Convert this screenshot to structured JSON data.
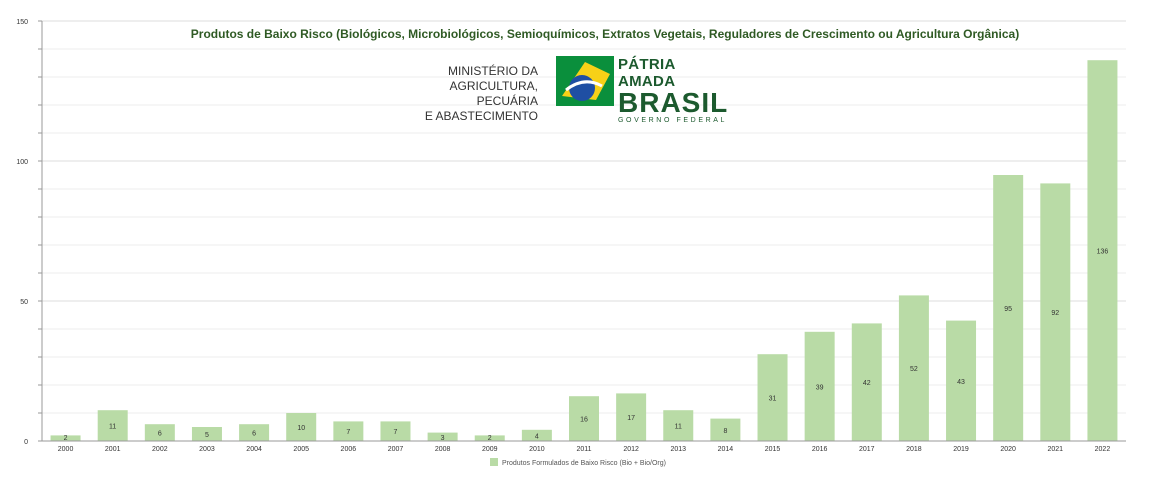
{
  "chart_data": {
    "type": "bar",
    "title": "Produtos de Baixo Risco (Biológicos, Microbiológicos, Semioquímicos, Extratos Vegetais, Reguladores de Crescimento ou Agricultura Orgânica)",
    "categories": [
      "2000",
      "2001",
      "2002",
      "2003",
      "2004",
      "2005",
      "2006",
      "2007",
      "2008",
      "2009",
      "2010",
      "2011",
      "2012",
      "2013",
      "2014",
      "2015",
      "2016",
      "2017",
      "2018",
      "2019",
      "2020",
      "2021",
      "2022"
    ],
    "series": [
      {
        "name": "Produtos Formulados de Baixo Risco (Bio + Bio/Org)",
        "values": [
          2,
          11,
          6,
          5,
          6,
          10,
          7,
          7,
          3,
          2,
          4,
          16,
          17,
          11,
          8,
          31,
          39,
          42,
          52,
          43,
          95,
          92,
          136
        ],
        "color": "#b9dba6"
      }
    ],
    "y_ticks": [
      "0",
      "50",
      "100",
      "150"
    ],
    "ylim": [
      0,
      150
    ],
    "grid": true,
    "legend_position": "bottom"
  },
  "logo": {
    "ministry_line1": "MINISTÉRIO DA",
    "ministry_line2": "AGRICULTURA, PECUÁRIA",
    "ministry_line3": "E ABASTECIMENTO",
    "brand_line1": "PÁTRIA AMADA",
    "brand_line2": "BRASIL",
    "brand_line3": "GOVERNO FEDERAL"
  },
  "colors": {
    "bar": "#b9dba6",
    "axis": "#999999",
    "title": "#2f5a24",
    "brand": "#1c5a2e"
  }
}
